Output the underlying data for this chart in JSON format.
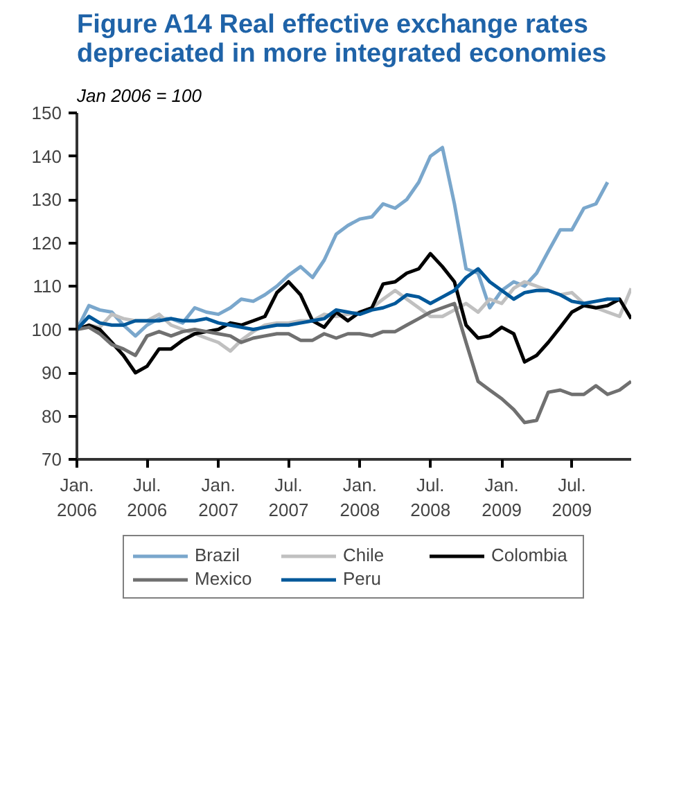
{
  "chart_data": {
    "type": "line",
    "title": "Figure A14  Real effective exchange rates\ndepreciated in more integrated economies",
    "ylabel": "Jan 2006 = 100",
    "x": [
      "2006-01",
      "2006-02",
      "2006-03",
      "2006-04",
      "2006-05",
      "2006-06",
      "2006-07",
      "2006-08",
      "2006-09",
      "2006-10",
      "2006-11",
      "2006-12",
      "2007-01",
      "2007-02",
      "2007-03",
      "2007-04",
      "2007-05",
      "2007-06",
      "2007-07",
      "2007-08",
      "2007-09",
      "2007-10",
      "2007-11",
      "2007-12",
      "2008-01",
      "2008-02",
      "2008-03",
      "2008-04",
      "2008-05",
      "2008-06",
      "2008-07",
      "2008-08",
      "2008-09",
      "2008-10",
      "2008-11",
      "2008-12",
      "2009-01",
      "2009-02",
      "2009-03",
      "2009-04",
      "2009-05",
      "2009-06",
      "2009-07",
      "2009-08",
      "2009-09",
      "2009-10",
      "2009-11",
      "2009-12"
    ],
    "series": [
      {
        "name": "Brazil",
        "color": "#7aa7cc",
        "values": [
          100,
          105.5,
          104.5,
          104,
          101,
          98.5,
          101,
          102.5,
          102.5,
          101.5,
          105,
          104,
          103.5,
          105,
          107,
          106.5,
          108,
          110,
          112.5,
          114.5,
          112,
          116,
          122,
          124,
          125.5,
          126,
          129,
          128,
          130,
          134,
          140,
          142,
          129,
          114,
          113,
          105,
          109,
          111,
          110,
          113,
          118,
          123,
          123,
          128,
          129,
          134,
          null,
          null
        ]
      },
      {
        "name": "Chile",
        "color": "#c0c0c0",
        "values": [
          100,
          101,
          100.5,
          103.5,
          102.5,
          102,
          102,
          103.5,
          101,
          100,
          99,
          98,
          97,
          95,
          97.5,
          99.5,
          101,
          101.5,
          101.5,
          102,
          102,
          103.5,
          103,
          103.5,
          104,
          105,
          107,
          109,
          107,
          105,
          103,
          103,
          104.5,
          106,
          104,
          107,
          106,
          109.5,
          111,
          110,
          109,
          108,
          108.5,
          106,
          105,
          104,
          103,
          109.5
        ]
      },
      {
        "name": "Colombia",
        "color": "#000000",
        "values": [
          100,
          101,
          100,
          97,
          94,
          90,
          91.5,
          95.5,
          95.5,
          97.5,
          99,
          99.5,
          100,
          101.5,
          101,
          102,
          103,
          108.5,
          111,
          108,
          102,
          100.5,
          104,
          102,
          104,
          105,
          110.5,
          111,
          113,
          114,
          117.5,
          114.5,
          111,
          101,
          98,
          98.5,
          100.5,
          99,
          92.5,
          94,
          97,
          100.5,
          104,
          105.5,
          105,
          105.5,
          107,
          102.5
        ]
      },
      {
        "name": "Mexico",
        "color": "#707070",
        "values": [
          100,
          100.5,
          99,
          96.5,
          95.5,
          94,
          98.5,
          99.5,
          98.5,
          99.5,
          100,
          99.5,
          99,
          98.5,
          97,
          98,
          98.5,
          99,
          99,
          97.5,
          97.5,
          99,
          98,
          99,
          99,
          98.5,
          99.5,
          99.5,
          101,
          102.5,
          104,
          105,
          106,
          97,
          88,
          86,
          84,
          81.5,
          78.5,
          79,
          85.5,
          86,
          85,
          85,
          87,
          85,
          86,
          88
        ]
      },
      {
        "name": "Peru",
        "color": "#00589a",
        "values": [
          100,
          103,
          101.5,
          101,
          101,
          102,
          102,
          102,
          102.5,
          102,
          102,
          102.5,
          101.5,
          101,
          100.5,
          100,
          100.5,
          101,
          101,
          101.5,
          102,
          102.5,
          104.5,
          104,
          103.5,
          104.5,
          105,
          106,
          108,
          107.5,
          106,
          107.5,
          109,
          112,
          114,
          111,
          109,
          107,
          108.5,
          109,
          109,
          108,
          106.5,
          106,
          106.5,
          107,
          107,
          null
        ]
      }
    ],
    "xlim": [
      "2006-01",
      "2009-12"
    ],
    "xticks": [
      {
        "value": "2006-01",
        "label": "Jan.\n2006"
      },
      {
        "value": "2006-07",
        "label": "Jul.\n2006"
      },
      {
        "value": "2007-01",
        "label": "Jan.\n2007"
      },
      {
        "value": "2007-07",
        "label": "Jul.\n2007"
      },
      {
        "value": "2008-01",
        "label": "Jan.\n2008"
      },
      {
        "value": "2008-07",
        "label": "Jul.\n2008"
      },
      {
        "value": "2009-01",
        "label": "Jan.\n2009"
      },
      {
        "value": "2009-07",
        "label": "Jul.\n2009"
      }
    ],
    "ylim": [
      70,
      150
    ],
    "yticks": [
      70,
      80,
      90,
      100,
      110,
      120,
      130,
      140,
      150
    ],
    "grid": false,
    "legend": "bottom",
    "marker": "none",
    "line_style": "solid"
  }
}
